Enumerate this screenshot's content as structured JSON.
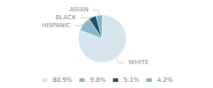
{
  "chart_data": {
    "type": "pie",
    "categories": [
      "WHITE",
      "HISPANIC",
      "BLACK",
      "ASIAN"
    ],
    "values": [
      80.9,
      9.8,
      5.1,
      4.2
    ],
    "value_labels": [
      "80.9%",
      "9.8%",
      "5.1%",
      "4.2%"
    ],
    "colors": [
      "#d6e4ee",
      "#8ab4c8",
      "#1e4d6b",
      "#7ab8c8"
    ],
    "legend": "bottom"
  }
}
